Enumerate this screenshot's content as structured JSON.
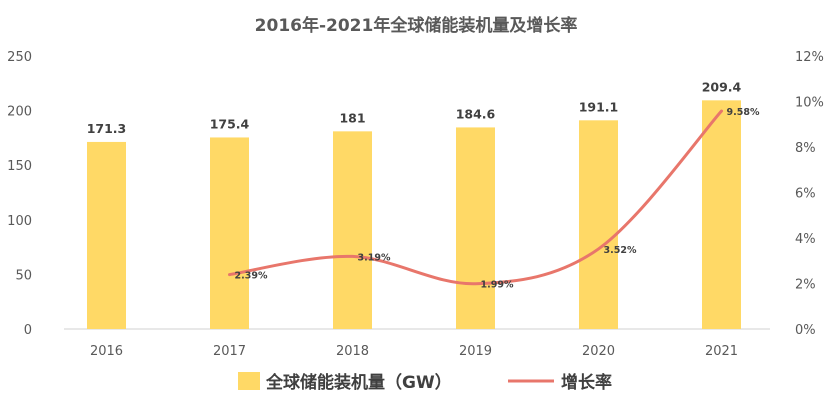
{
  "chart_data": {
    "type": "bar",
    "title": "2016年-2021年全球储能装机量及增长率",
    "categories": [
      "2016",
      "2017",
      "2018",
      "2019",
      "2020",
      "2021"
    ],
    "series": [
      {
        "name": "全球储能装机量（GW）",
        "type": "bar",
        "axis": "left",
        "values": [
          171.3,
          175.4,
          181,
          184.6,
          191.1,
          209.4
        ],
        "labels": [
          "171.3",
          "175.4",
          "181",
          "184.6",
          "191.1",
          "209.4"
        ],
        "color": "#FFD966"
      },
      {
        "name": "增长率",
        "type": "line",
        "axis": "right",
        "values": [
          null,
          2.39,
          3.19,
          1.99,
          3.52,
          9.58
        ],
        "labels": [
          null,
          "2.39%",
          "3.19%",
          "1.99%",
          "3.52%",
          "9.58%"
        ],
        "color": "#E8766B"
      }
    ],
    "ylim": [
      0,
      250
    ],
    "yticks": [
      "0",
      "50",
      "100",
      "150",
      "200",
      "250"
    ],
    "y2lim": [
      0,
      12
    ],
    "y2ticks": [
      "0%",
      "2%",
      "4%",
      "6%",
      "8%",
      "10%",
      "12%"
    ],
    "grid": false,
    "legend": "bottom"
  }
}
